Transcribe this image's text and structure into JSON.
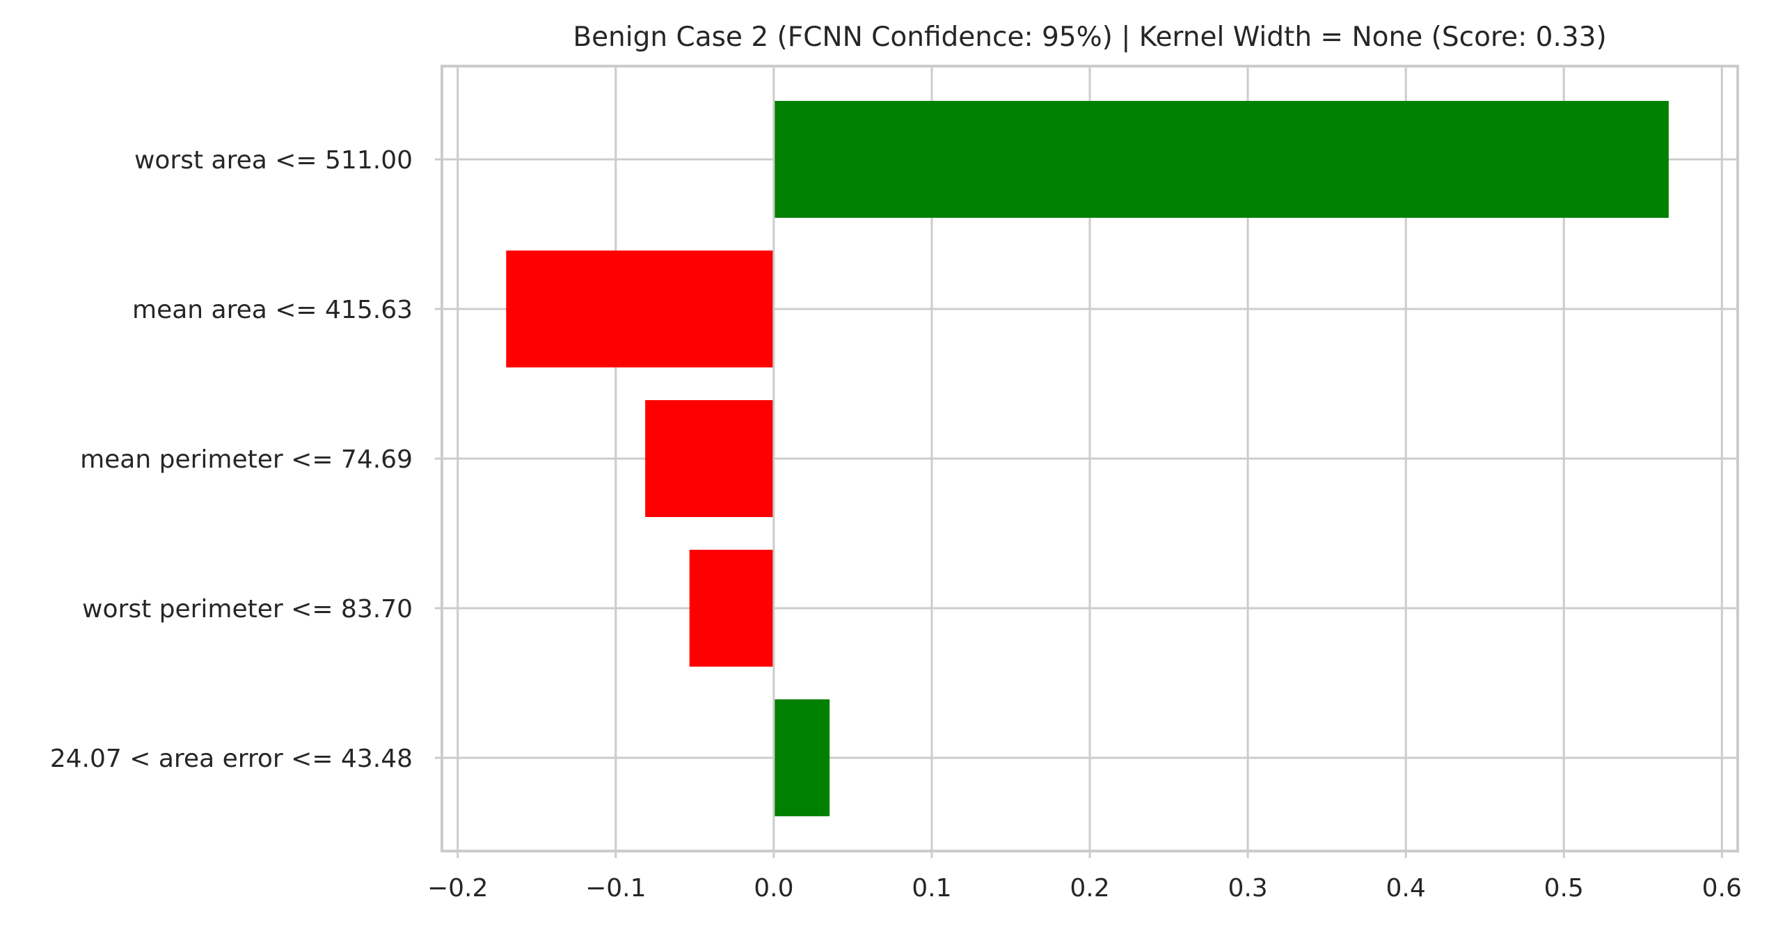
{
  "chart_data": {
    "type": "bar",
    "orientation": "horizontal",
    "title": "Benign Case 2 (FCNN Confidence: 95%) | Kernel Width = None (Score: 0.33)",
    "xlabel": "",
    "ylabel": "",
    "categories": [
      "worst area <= 511.00",
      "mean area <= 415.63",
      "mean perimeter <= 74.69",
      "worst perimeter <= 83.70",
      "24.07 < area error <= 43.48"
    ],
    "values": [
      0.567,
      -0.17,
      -0.082,
      -0.054,
      0.036
    ],
    "xlim": [
      -0.21,
      0.61
    ],
    "xticks": [
      -0.2,
      -0.1,
      0.0,
      0.1,
      0.2,
      0.3,
      0.4,
      0.5,
      0.6
    ],
    "xtick_labels": [
      "−0.2",
      "−0.1",
      "0.0",
      "0.1",
      "0.2",
      "0.3",
      "0.4",
      "0.5",
      "0.6"
    ],
    "grid": true,
    "colors": {
      "positive": "#008000",
      "negative": "#ff0000",
      "grid": "#cccccc",
      "spine": "#cccccc",
      "text": "#262626"
    }
  }
}
